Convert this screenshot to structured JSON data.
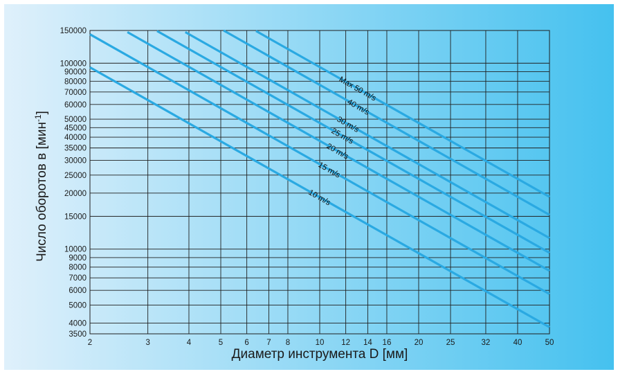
{
  "chart_data": {
    "type": "line",
    "title": "",
    "xlabel": "Диаметр инструмента D [мм]",
    "ylabel": "Число оборотов в [мин-1]",
    "ylabel_parts": {
      "main": "Число оборотов в [мин",
      "sup": "-1",
      "close": "]"
    },
    "x_scale": "log",
    "y_scale": "log",
    "xlim": [
      2,
      50
    ],
    "ylim": [
      3500,
      150000
    ],
    "grid": true,
    "x_ticks": [
      2,
      3,
      4,
      5,
      6,
      7,
      8,
      10,
      12,
      14,
      16,
      20,
      25,
      32,
      40,
      50
    ],
    "x_tick_labels": [
      "2",
      "3",
      "4",
      "5",
      "6",
      "7",
      "8",
      "10",
      "12",
      "14",
      "16",
      "20",
      "25",
      "32",
      "40",
      "50"
    ],
    "y_ticks": [
      3500,
      4000,
      5000,
      6000,
      7000,
      8000,
      9000,
      10000,
      15000,
      20000,
      25000,
      30000,
      35000,
      40000,
      45000,
      50000,
      60000,
      70000,
      80000,
      90000,
      100000,
      150000
    ],
    "y_tick_labels": [
      "3500",
      "4000",
      "5000",
      "6000",
      "7000",
      "8000",
      "9000",
      "10000",
      "15000",
      "20000",
      "25000",
      "30000",
      "35000",
      "40000",
      "45000",
      "50000",
      "60000",
      "70000",
      "80000",
      "90000",
      "100000",
      "150000"
    ],
    "series": [
      {
        "name": "10 m/s",
        "label": "10 m/s",
        "x": [
          2,
          50
        ],
        "y": [
          95000,
          3800
        ]
      },
      {
        "name": "15 m/s",
        "label": "15 m/s",
        "x": [
          2,
          50
        ],
        "y": [
          143000,
          5730
        ]
      },
      {
        "name": "20 m/s",
        "label": "20 m/s",
        "x": [
          2.6,
          50
        ],
        "y": [
          147000,
          7640
        ]
      },
      {
        "name": "25 m/s",
        "label": "25 m/s",
        "x": [
          3.2,
          50
        ],
        "y": [
          149000,
          9550
        ]
      },
      {
        "name": "30 m/s",
        "label": "30 m/s",
        "x": [
          3.9,
          50
        ],
        "y": [
          147000,
          11460
        ]
      },
      {
        "name": "40 m/s",
        "label": "40 m/s",
        "x": [
          5.1,
          50
        ],
        "y": [
          150000,
          15280
        ]
      },
      {
        "name": "Max 50 m/s",
        "label": "Max 50 m/s",
        "x": [
          6.4,
          50
        ],
        "y": [
          149000,
          19100
        ]
      }
    ],
    "colors": {
      "line": "#2aa9e2",
      "grid": "#1f1f1f",
      "background_left": "#dff0fb",
      "background_right": "#45c1ef"
    }
  }
}
